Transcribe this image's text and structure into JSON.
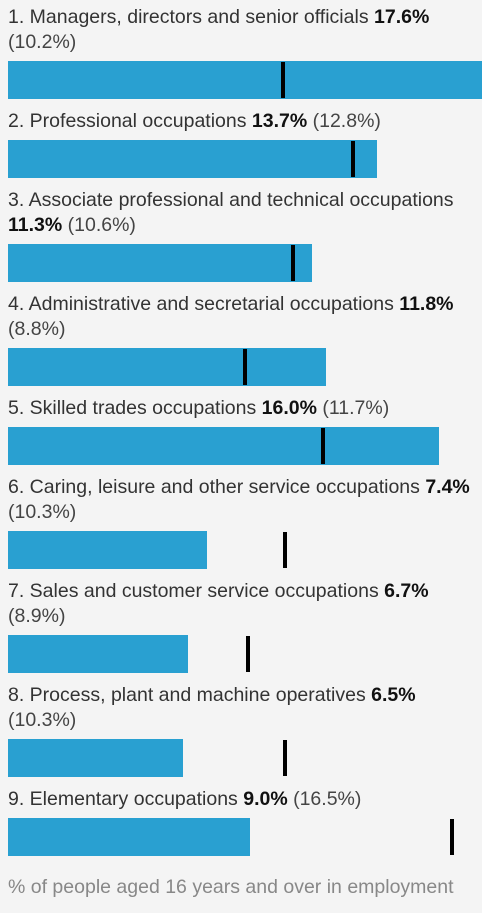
{
  "chart_data": {
    "type": "bar",
    "orientation": "horizontal",
    "categories": [
      "1. Managers, directors and senior officials",
      "2. Professional occupations",
      "3. Associate professional and technical occupations",
      "4. Administrative and secretarial occupations",
      "5. Skilled trades occupations",
      "6. Caring, leisure and other service occupations",
      "7. Sales and customer service occupations",
      "8. Process, plant and machine operatives",
      "9. Elementary occupations"
    ],
    "series": [
      {
        "color": "#29a0d1",
        "values": [
          17.6,
          13.7,
          11.3,
          11.8,
          16.0,
          7.4,
          6.7,
          6.5,
          9.0
        ],
        "value_labels": [
          "17.6%",
          "13.7%",
          "11.3%",
          "11.8%",
          "16.0%",
          "7.4%",
          "6.7%",
          "6.5%",
          "9.0%"
        ]
      },
      {
        "color": "#000000",
        "values": [
          10.2,
          12.8,
          10.6,
          8.8,
          11.7,
          10.3,
          8.9,
          10.3,
          16.5
        ],
        "value_labels": [
          "(10.2%)",
          "(12.8%)",
          "(10.6%)",
          "(8.8%)",
          "(11.7%)",
          "(10.3%)",
          "(8.9%)",
          "(10.3%)",
          "(16.5%)"
        ]
      }
    ],
    "xlim": [
      0,
      17.6
    ],
    "note": "% of people aged 16 years and over in employment"
  }
}
